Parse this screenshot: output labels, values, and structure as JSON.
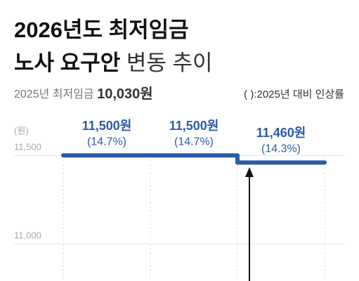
{
  "chart_data": {
    "type": "step",
    "title_line1": "2026년도 최저임금",
    "title_line2_bold": "노사 요구안",
    "title_line2_light": "변동 추이",
    "subtitle": "2025년 최저임금",
    "subtitle_value": "10,030원",
    "note": "( ):2025년 대비 인상률",
    "y_unit": "(원)",
    "categories": [
      null,
      null,
      null
    ],
    "series": [
      {
        "name": null,
        "color": "#2b5ba8",
        "values": [
          11500,
          11500,
          11460
        ],
        "value_labels": [
          "11,500원",
          "11,500원",
          "11,460원"
        ],
        "changes": [
          14.7,
          14.7,
          14.3
        ],
        "change_labels": [
          "(14.7%)",
          "(14.7%)",
          "(14.3%)"
        ]
      }
    ],
    "ylim": [
      10790,
      11660
    ],
    "yticks": [
      {
        "value": 11500,
        "label": "11,500"
      },
      {
        "value": 11000,
        "label": "11,000"
      }
    ],
    "grid": true
  }
}
